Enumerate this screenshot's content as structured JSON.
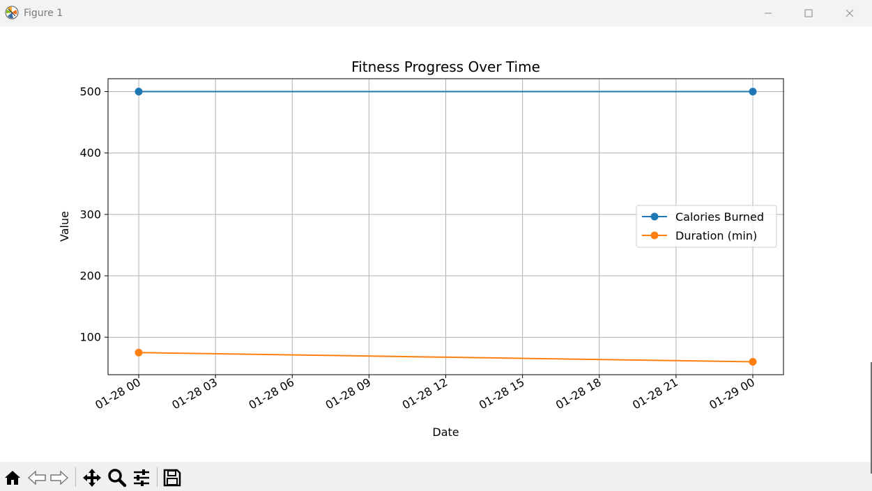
{
  "window": {
    "title": "Figure 1",
    "icon": "matplotlib-logo-icon",
    "controls": [
      "minimize-icon",
      "maximize-icon",
      "close-icon"
    ]
  },
  "toolbar": {
    "tools": [
      "home-icon",
      "back-arrow-icon",
      "forward-arrow-icon",
      "pan-icon",
      "zoom-icon",
      "configure-subplots-icon",
      "save-icon"
    ]
  },
  "chart_data": {
    "type": "line",
    "title": "Fitness Progress Over Time",
    "xlabel": "Date",
    "ylabel": "Value",
    "x": [
      "2024-01-28 00:00",
      "2024-01-29 00:00"
    ],
    "x_ticks": [
      "01-28 00",
      "01-28 03",
      "01-28 06",
      "01-28 09",
      "01-28 12",
      "01-28 15",
      "01-28 18",
      "01-28 21",
      "01-29 00"
    ],
    "y_ticks": [
      100,
      200,
      300,
      400,
      500
    ],
    "ylim": [
      39,
      521
    ],
    "series": [
      {
        "name": "Calories Burned",
        "color": "#1f77b4",
        "values": [
          500,
          500
        ]
      },
      {
        "name": "Duration (min)",
        "color": "#ff7f0e",
        "values": [
          75,
          60
        ]
      }
    ],
    "grid": true,
    "legend_position": "center-right",
    "marker": "circle"
  }
}
